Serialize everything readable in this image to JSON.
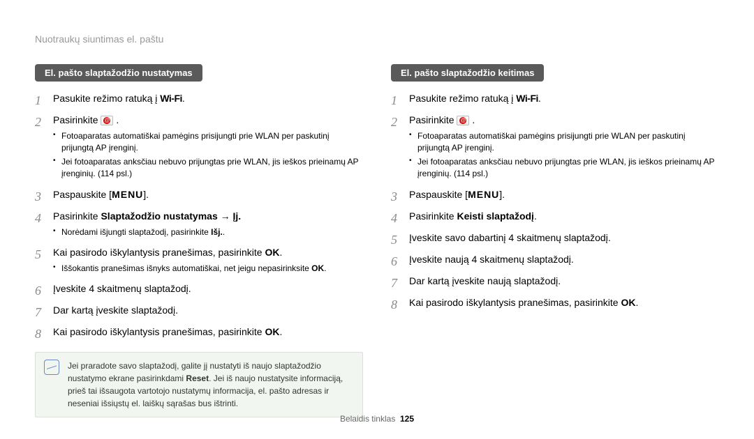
{
  "header": {
    "title": "Nuotraukų siuntimas el. paštu"
  },
  "left": {
    "pill": "El. pašto slaptažodžio nustatymas",
    "steps": {
      "1": {
        "pre": "Pasukite režimo ratuką į ",
        "wifi": "Wi-Fi",
        "post": "."
      },
      "2": {
        "pre": "Pasirinkite ",
        "post": " .",
        "sub1": "Fotoaparatas automatiškai pamėgins prisijungti prie WLAN per paskutinį prijungtą AP įrenginį.",
        "sub2": "Jei fotoaparatas anksčiau nebuvo prijungtas prie WLAN, jis ieškos prieinamų AP įrenginių. (114 psl.)"
      },
      "3": {
        "pre": "Paspauskite [",
        "menu": "MENU",
        "post": "]."
      },
      "4": {
        "pre": "Pasirinkite ",
        "bold": "Slaptažodžio nustatymas → Įj.",
        "post": "",
        "sub1a": "Norėdami išjungti slaptažodį, pasirinkite ",
        "sub1b": "Išj.",
        "sub1c": "."
      },
      "5": {
        "pre": "Kai pasirodo iškylantysis pranešimas, pasirinkite ",
        "bold": "OK",
        "post": ".",
        "sub1a": "Iššokantis pranešimas išnyks automatiškai, net jeigu nepasirinksite ",
        "sub1b": "OK",
        "sub1c": "."
      },
      "6": {
        "text": "Įveskite 4 skaitmenų slaptažodį."
      },
      "7": {
        "text": "Dar kartą įveskite slaptažodį."
      },
      "8": {
        "pre": "Kai pasirodo iškylantysis pranešimas, pasirinkite ",
        "bold": "OK",
        "post": "."
      }
    },
    "note": {
      "t1": "Jei praradote savo slaptažodį, galite jį nustatyti iš naujo slaptažodžio nustatymo ekrane pasirinkdami ",
      "tb": "Reset",
      "t2": ". Jei iš naujo nustatysite informaciją, prieš tai išsaugota vartotojo nustatymų informacija, el. pašto adresas ir neseniai išsiųstų el. laiškų sąrašas bus ištrinti."
    }
  },
  "right": {
    "pill": "El. pašto slaptažodžio keitimas",
    "steps": {
      "1": {
        "pre": "Pasukite režimo ratuką į ",
        "wifi": "Wi-Fi",
        "post": "."
      },
      "2": {
        "pre": "Pasirinkite ",
        "post": " .",
        "sub1": "Fotoaparatas automatiškai pamėgins prisijungti prie WLAN per paskutinį prijungtą AP įrenginį.",
        "sub2": "Jei fotoaparatas anksčiau nebuvo prijungtas prie WLAN, jis ieškos prieinamų AP įrenginių. (114 psl.)"
      },
      "3": {
        "pre": "Paspauskite [",
        "menu": "MENU",
        "post": "]."
      },
      "4": {
        "pre": "Pasirinkite ",
        "bold": "Keisti slaptažodį",
        "post": "."
      },
      "5": {
        "text": "Įveskite savo dabartinį 4 skaitmenų slaptažodį."
      },
      "6": {
        "text": "Įveskite naują 4 skaitmenų slaptažodį."
      },
      "7": {
        "text": "Dar kartą įveskite naują slaptažodį."
      },
      "8": {
        "pre": "Kai pasirodo iškylantysis pranešimas, pasirinkite ",
        "bold": "OK",
        "post": "."
      }
    }
  },
  "footer": {
    "label": "Belaidis tinklas",
    "page": "125"
  }
}
